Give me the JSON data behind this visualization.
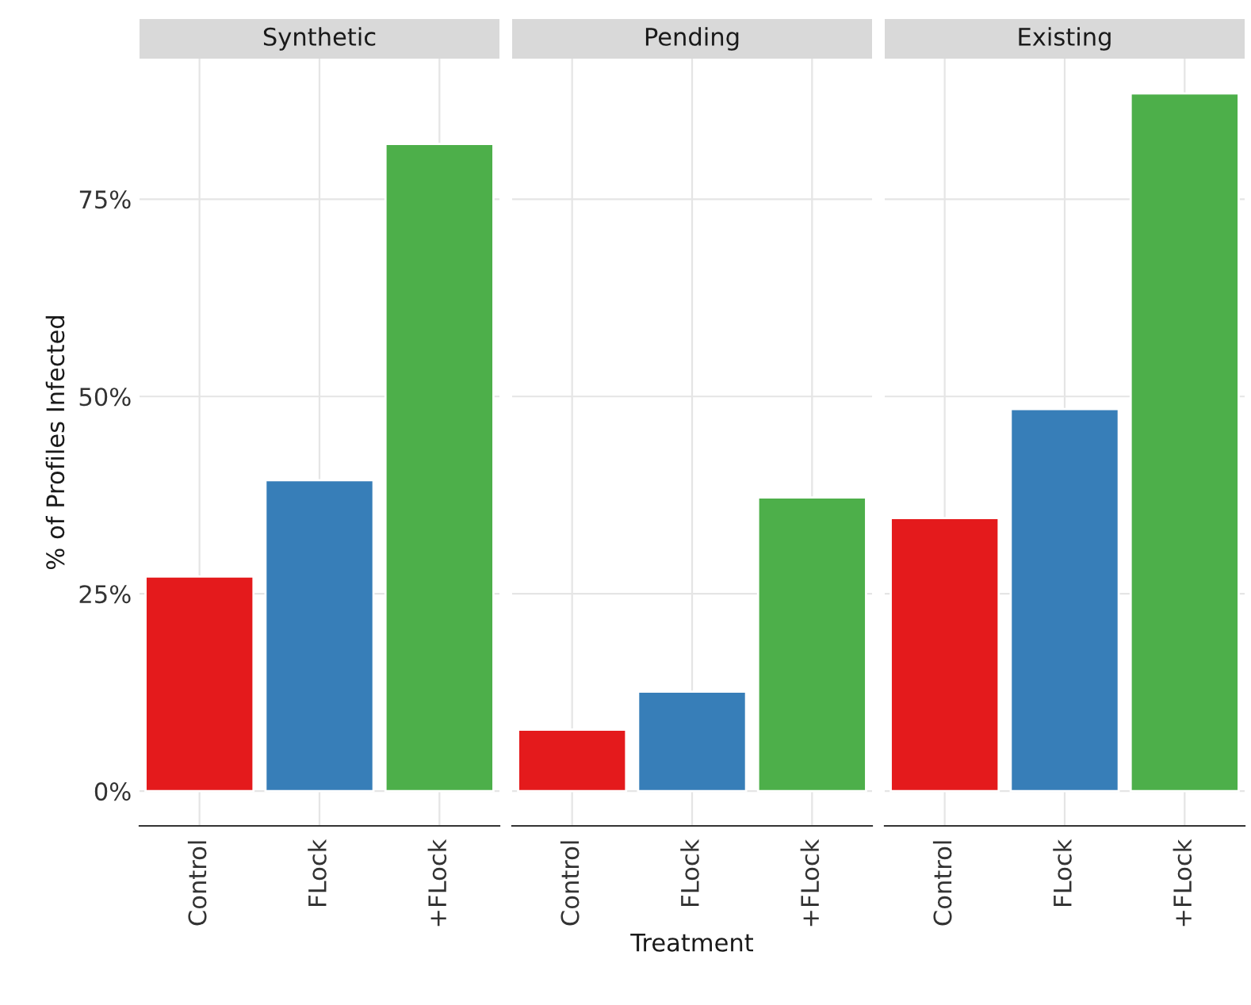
{
  "chart_data": [
    {
      "type": "bar",
      "title": "Synthetic",
      "ylabel": "% of Profiles Infected",
      "categories": [
        "Control",
        "FLock",
        "+FLock"
      ],
      "values": [
        27.2,
        39.4,
        82
      ],
      "colors": [
        "#e41a1c",
        "#377eb8",
        "#4daf4a"
      ],
      "ylim": [
        -4.4,
        92.8
      ],
      "yticks": [
        {
          "value": 0,
          "label": "0%"
        },
        {
          "value": 25,
          "label": "25%"
        },
        {
          "value": 50,
          "label": "50%"
        },
        {
          "value": 75,
          "label": "75%"
        }
      ],
      "grid": true
    },
    {
      "type": "bar",
      "title": "Pending",
      "xlabel": "Treatment",
      "categories": [
        "Control",
        "FLock",
        "+FLock"
      ],
      "values": [
        7.8,
        12.6,
        37.2
      ],
      "colors": [
        "#e41a1c",
        "#377eb8",
        "#4daf4a"
      ],
      "ylim": [
        -4.4,
        92.8
      ],
      "yticks": [
        {
          "value": 0,
          "label": null
        },
        {
          "value": 25,
          "label": null
        },
        {
          "value": 50,
          "label": null
        },
        {
          "value": 75,
          "label": null
        }
      ],
      "grid": true,
      "tick_labels": "x"
    },
    {
      "type": "bar",
      "title": "Existing",
      "categories": [
        "Control",
        "FLock",
        "+FLock"
      ],
      "values": [
        34.6,
        48.4,
        88.4
      ],
      "colors": [
        "#e41a1c",
        "#377eb8",
        "#4daf4a"
      ],
      "ylim": [
        -4.4,
        92.8
      ],
      "yticks": [
        {
          "value": 0,
          "label": null
        },
        {
          "value": 25,
          "label": null
        },
        {
          "value": 50,
          "label": null
        },
        {
          "value": 75,
          "label": null
        }
      ],
      "grid": true,
      "tick_labels": "x"
    }
  ]
}
